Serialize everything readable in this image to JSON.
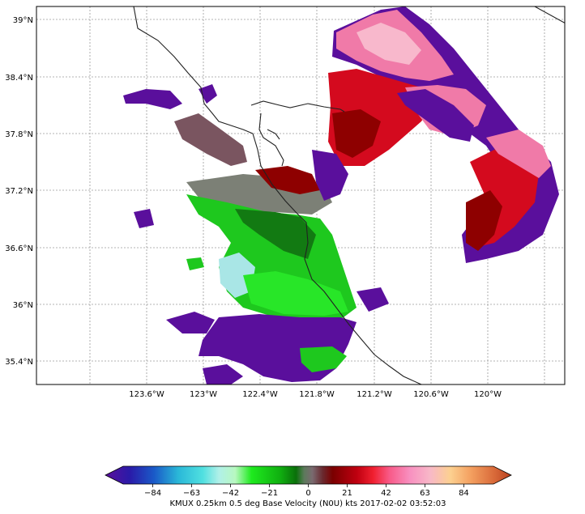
{
  "map": {
    "lat_ticks": [
      "39°N",
      "38.4°N",
      "37.8°N",
      "37.2°N",
      "36.6°N",
      "36°N",
      "35.4°N"
    ],
    "lon_ticks": [
      "123.6°W",
      "123°W",
      "122.4°W",
      "121.8°W",
      "121.2°W",
      "120.6°W",
      "120°W"
    ],
    "grid": "dotted",
    "lat_range": [
      35.0,
      39.1
    ],
    "lon_range": [
      -124.15,
      -119.3
    ]
  },
  "colorbar": {
    "ticks": [
      "−84",
      "−63",
      "−42",
      "−21",
      "0",
      "21",
      "42",
      "63",
      "84"
    ],
    "range": [
      -100,
      100
    ],
    "label": "KMUX 0.25km 0.5 deg Base Velocity (N0U) kts 2017-02-02 03:52:03"
  },
  "colors": {
    "purple": "#5a0f9c",
    "pink": "#f07aa8",
    "red": "#d40a1e",
    "darkred": "#8e0000",
    "green": "#1ec81e",
    "darkgreen": "#127a12",
    "lightcyan": "#a9e6e6",
    "gray": "#808080"
  }
}
